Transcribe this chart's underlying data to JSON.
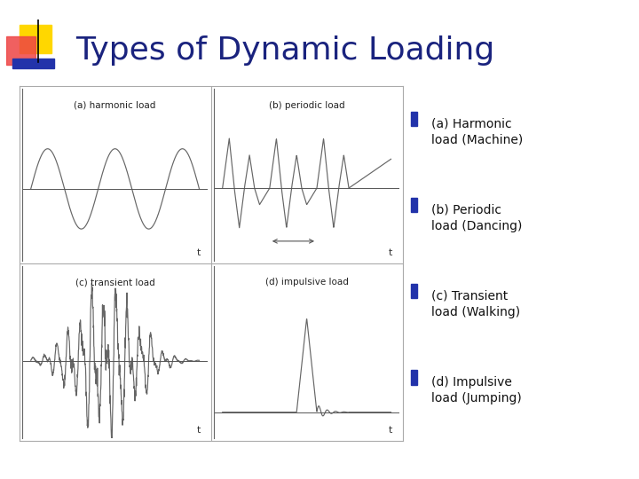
{
  "title": "Types of Dynamic Loading",
  "title_color": "#1a237e",
  "title_fontsize": 26,
  "background_color": "#ffffff",
  "bullet_color": "#2233aa",
  "bullet_items": [
    "(a) Harmonic\nload (Machine)",
    "(b) Periodic\nload (Dancing)",
    "(c) Transient\nload (Walking)",
    "(d) Impulsive\nload (Jumping)"
  ],
  "subplot_labels": [
    "(a) harmonic load",
    "(b) periodic load",
    "(c) transient load",
    "(d) impulsive load"
  ],
  "subplot_bg": "#ffffff",
  "line_color": "#666666",
  "border_color": "#aaaaaa",
  "label_fontsize": 7.5,
  "bullet_fontsize": 10
}
